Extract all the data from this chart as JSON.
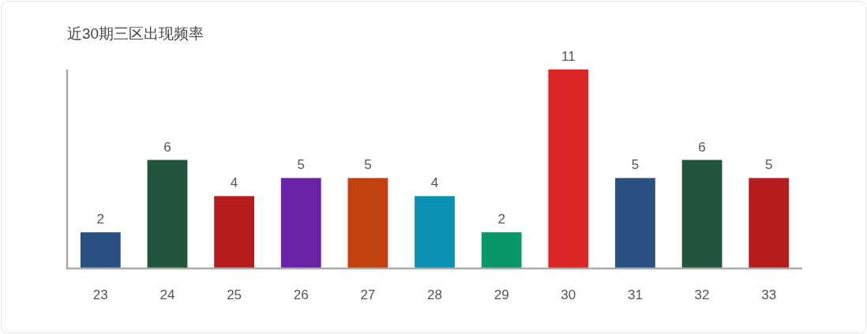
{
  "chart_data": {
    "type": "bar",
    "title": "近30期三区出现频率",
    "categories": [
      "23",
      "24",
      "25",
      "26",
      "27",
      "28",
      "29",
      "30",
      "31",
      "32",
      "33"
    ],
    "values": [
      2,
      6,
      4,
      5,
      5,
      4,
      2,
      11,
      5,
      6,
      5
    ],
    "colors": [
      "#2b5182",
      "#23553c",
      "#b71c1c",
      "#6a22a8",
      "#c2410c",
      "#0a91b4",
      "#069669",
      "#dc2626",
      "#2b5182",
      "#23553c",
      "#b71c1c"
    ],
    "ylim": [
      0,
      11
    ],
    "data_labels": true
  }
}
